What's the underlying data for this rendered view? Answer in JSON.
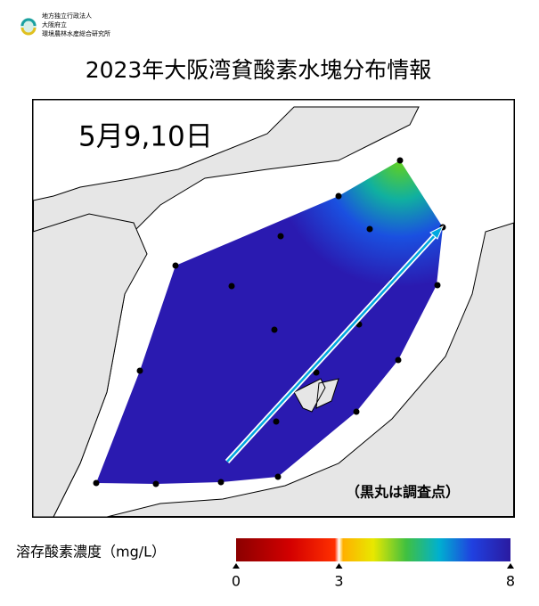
{
  "header": {
    "org_lines": [
      "地方独立行政法人",
      "大阪府立",
      "環境農林水産総合研究所"
    ],
    "title": "2023年大阪湾貧酸素水塊分布情報"
  },
  "map": {
    "date": "5月9,10日",
    "note": "（黒丸は調査点）"
  },
  "chart_data": {
    "type": "colorbar",
    "title": "溶存酸素濃度（mg/L）",
    "xlim": [
      0,
      8
    ],
    "xticks": [
      0,
      3,
      8
    ]
  }
}
